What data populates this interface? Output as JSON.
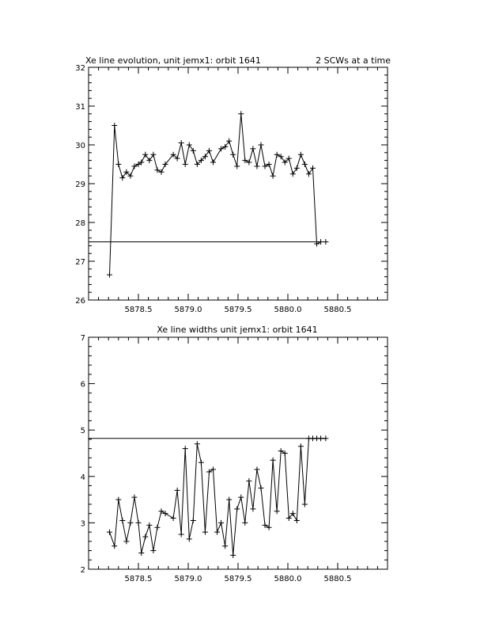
{
  "chart_data": [
    {
      "type": "line",
      "title": "Xe line evolution, unit jemx1: orbit 1641",
      "subtitle": "2 SCWs at a time",
      "xlabel": "",
      "ylabel": "",
      "xlim": [
        5878.0,
        5881.0
      ],
      "ylim": [
        26,
        32
      ],
      "xticks": [
        5878.5,
        5879.0,
        5879.5,
        5880.0,
        5880.5
      ],
      "xtick_labels": [
        "5878.5",
        "5879.0",
        "5879.5",
        "5880.0",
        "5880.5"
      ],
      "yticks": [
        26,
        27,
        28,
        29,
        30,
        31,
        32
      ],
      "ytick_labels": [
        "26",
        "27",
        "28",
        "29",
        "30",
        "31",
        "32"
      ],
      "marker": "plus",
      "grid": false,
      "reference_line": {
        "y": 27.5,
        "x_start": 5878.0,
        "x_end": 5880.38
      },
      "series": [
        {
          "x": [
            5878.21,
            5878.26,
            5878.3,
            5878.34,
            5878.38,
            5878.42,
            5878.46,
            5878.5,
            5878.53,
            5878.57,
            5878.61,
            5878.65,
            5878.69,
            5878.73,
            5878.77,
            5878.85,
            5878.89,
            5878.93,
            5878.97,
            5879.01,
            5879.05,
            5879.09,
            5879.13,
            5879.17,
            5879.21,
            5879.25,
            5879.33,
            5879.37,
            5879.41,
            5879.45,
            5879.49,
            5879.53,
            5879.57,
            5879.61,
            5879.65,
            5879.69,
            5879.73,
            5879.77,
            5879.81,
            5879.85,
            5879.89,
            5879.93,
            5879.97,
            5880.01,
            5880.05,
            5880.09,
            5880.13,
            5880.17,
            5880.21,
            5880.25,
            5880.29,
            5880.33,
            5880.38
          ],
          "values": [
            26.65,
            30.5,
            29.5,
            29.15,
            29.3,
            29.2,
            29.45,
            29.5,
            29.55,
            29.75,
            29.6,
            29.75,
            29.35,
            29.3,
            29.5,
            29.75,
            29.65,
            30.05,
            29.5,
            30.0,
            29.85,
            29.5,
            29.6,
            29.7,
            29.85,
            29.55,
            29.9,
            29.95,
            30.1,
            29.75,
            29.45,
            30.8,
            29.6,
            29.55,
            29.9,
            29.45,
            30.0,
            29.45,
            29.5,
            29.2,
            29.75,
            29.7,
            29.55,
            29.65,
            29.25,
            29.4,
            29.75,
            29.5,
            29.25,
            29.4,
            27.45,
            27.5,
            27.5
          ]
        }
      ]
    },
    {
      "type": "line",
      "title": "Xe line widths unit jemx1: orbit 1641",
      "xlabel": "",
      "ylabel": "",
      "xlim": [
        5878.0,
        5881.0
      ],
      "ylim": [
        2,
        7
      ],
      "xticks": [
        5878.5,
        5879.0,
        5879.5,
        5880.0,
        5880.5
      ],
      "xtick_labels": [
        "5878.5",
        "5879.0",
        "5879.5",
        "5880.0",
        "5880.5"
      ],
      "yticks": [
        2,
        3,
        4,
        5,
        6,
        7
      ],
      "ytick_labels": [
        "2",
        "3",
        "4",
        "5",
        "6",
        "7"
      ],
      "marker": "plus",
      "grid": false,
      "reference_line": {
        "y": 4.82,
        "x_start": 5878.0,
        "x_end": 5880.38
      },
      "series": [
        {
          "x": [
            5878.21,
            5878.26,
            5878.3,
            5878.34,
            5878.38,
            5878.42,
            5878.46,
            5878.5,
            5878.53,
            5878.57,
            5878.61,
            5878.65,
            5878.69,
            5878.73,
            5878.77,
            5878.85,
            5878.89,
            5878.93,
            5878.97,
            5879.01,
            5879.05,
            5879.09,
            5879.13,
            5879.17,
            5879.21,
            5879.25,
            5879.29,
            5879.33,
            5879.37,
            5879.41,
            5879.45,
            5879.49,
            5879.53,
            5879.57,
            5879.61,
            5879.65,
            5879.69,
            5879.73,
            5879.77,
            5879.81,
            5879.85,
            5879.89,
            5879.93,
            5879.97,
            5880.01,
            5880.05,
            5880.09,
            5880.13,
            5880.17,
            5880.21,
            5880.25,
            5880.29,
            5880.33,
            5880.38
          ],
          "values": [
            2.8,
            2.5,
            3.5,
            3.05,
            2.6,
            3.0,
            3.55,
            3.0,
            2.35,
            2.7,
            2.95,
            2.4,
            2.9,
            3.25,
            3.2,
            3.1,
            3.7,
            2.75,
            4.6,
            2.65,
            3.05,
            4.7,
            4.3,
            2.8,
            4.1,
            4.15,
            2.8,
            3.0,
            2.5,
            3.5,
            2.3,
            3.3,
            3.55,
            3.0,
            3.9,
            3.3,
            4.15,
            3.75,
            2.95,
            2.9,
            4.35,
            3.25,
            4.55,
            4.5,
            3.1,
            3.2,
            3.05,
            4.65,
            3.4,
            4.82,
            4.82,
            4.82,
            4.82,
            4.82
          ]
        }
      ]
    }
  ]
}
